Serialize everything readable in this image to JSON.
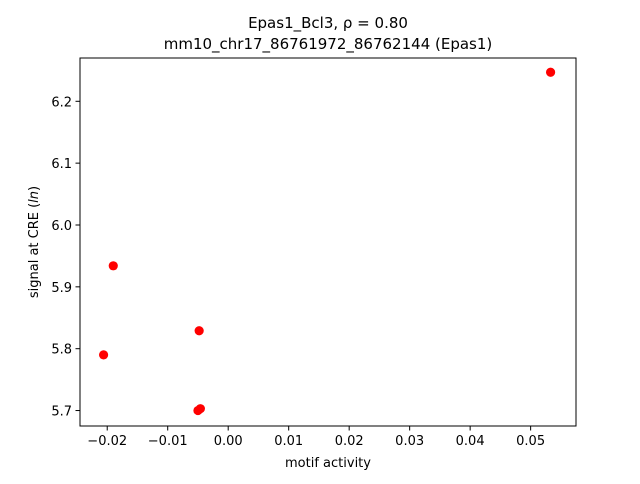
{
  "chart_data": {
    "type": "scatter",
    "title_line1": "Epas1_Bcl3, ρ = 0.80",
    "title_line2": "mm10_chr17_86761972_86762144 (Epas1)",
    "xlabel": "motif activity",
    "ylabel_prefix": "signal at CRE (",
    "ylabel_italic": "ln",
    "ylabel_suffix": ")",
    "xlim": [
      -0.0245,
      0.0575
    ],
    "ylim": [
      5.675,
      6.27
    ],
    "xticks": [
      -0.02,
      -0.01,
      0.0,
      0.01,
      0.02,
      0.03,
      0.04,
      0.05
    ],
    "xtick_labels": [
      "−0.02",
      "−0.01",
      "0.00",
      "0.01",
      "0.02",
      "0.03",
      "0.04",
      "0.05"
    ],
    "yticks": [
      5.7,
      5.8,
      5.9,
      6.0,
      6.1,
      6.2
    ],
    "ytick_labels": [
      "5.7",
      "5.8",
      "5.9",
      "6.0",
      "6.1",
      "6.2"
    ],
    "points": [
      {
        "x": 0.0533,
        "y": 6.247
      },
      {
        "x": -0.019,
        "y": 5.934
      },
      {
        "x": -0.0048,
        "y": 5.829
      },
      {
        "x": -0.0206,
        "y": 5.79
      },
      {
        "x": -0.0046,
        "y": 5.703
      },
      {
        "x": -0.005,
        "y": 5.7
      }
    ],
    "marker_color": "#ff0000",
    "grid": false
  }
}
